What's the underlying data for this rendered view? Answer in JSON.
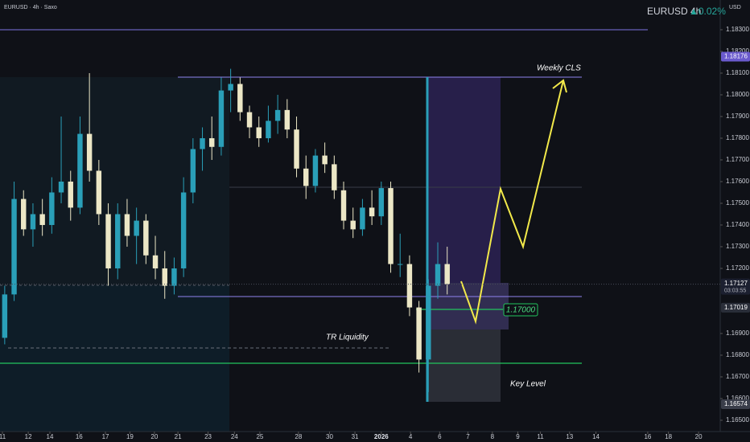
{
  "header": {
    "symbol_title": "EURUSD · 4h · Saxo",
    "ticker": "EURUSD 4h",
    "change": "▲0.02%",
    "currency": "USD"
  },
  "chart_data": {
    "type": "candlestick",
    "up_color": "#2a9fb8",
    "down_color": "#ece7c6",
    "x": [
      0,
      1,
      2,
      3,
      4,
      5,
      6,
      7,
      8,
      9,
      10,
      11,
      12,
      13,
      14,
      15,
      16,
      17,
      18,
      19,
      20,
      21,
      22,
      23,
      24,
      25,
      26,
      27,
      28,
      29,
      30,
      31,
      32,
      33,
      34,
      35,
      36,
      37,
      38,
      39,
      40,
      41,
      42,
      43,
      44,
      45,
      46,
      47
    ],
    "open": [
      1.1688,
      1.1708,
      1.1752,
      1.1738,
      1.1745,
      1.174,
      1.1755,
      1.176,
      1.1748,
      1.1782,
      1.1765,
      1.1745,
      1.172,
      1.1745,
      1.1735,
      1.1742,
      1.1726,
      1.172,
      1.1712,
      1.172,
      1.1755,
      1.1775,
      1.178,
      1.1776,
      1.1802,
      1.1805,
      1.1792,
      1.1785,
      1.178,
      1.1788,
      1.1793,
      1.1784,
      1.1766,
      1.1758,
      1.1772,
      1.1768,
      1.1756,
      1.1742,
      1.1738,
      1.1748,
      1.1744,
      1.1757,
      1.1722,
      1.1722,
      1.1702,
      1.1678,
      1.1712,
      1.1722
    ],
    "high": [
      1.1712,
      1.176,
      1.1756,
      1.175,
      1.1752,
      1.1762,
      1.179,
      1.1765,
      1.179,
      1.181,
      1.177,
      1.175,
      1.175,
      1.1752,
      1.1748,
      1.1745,
      1.1735,
      1.1728,
      1.1725,
      1.1762,
      1.178,
      1.1785,
      1.179,
      1.1808,
      1.1812,
      1.1808,
      1.1795,
      1.179,
      1.1795,
      1.18,
      1.1798,
      1.179,
      1.1772,
      1.1775,
      1.1778,
      1.1772,
      1.176,
      1.1748,
      1.1752,
      1.1756,
      1.176,
      1.176,
      1.1736,
      1.1726,
      1.1705,
      1.1715,
      1.1732,
      1.173
    ],
    "low": [
      1.1685,
      1.1705,
      1.1735,
      1.173,
      1.1735,
      1.1736,
      1.175,
      1.1742,
      1.1745,
      1.176,
      1.174,
      1.1712,
      1.1715,
      1.173,
      1.1722,
      1.1722,
      1.1715,
      1.1706,
      1.1708,
      1.1716,
      1.175,
      1.1765,
      1.177,
      1.1772,
      1.1792,
      1.1788,
      1.178,
      1.1776,
      1.1778,
      1.1782,
      1.178,
      1.1762,
      1.1752,
      1.1755,
      1.1764,
      1.1752,
      1.1738,
      1.1734,
      1.1735,
      1.174,
      1.174,
      1.1718,
      1.1716,
      1.1698,
      1.1672,
      1.1663,
      1.1706,
      1.1708
    ],
    "close": [
      1.1708,
      1.1752,
      1.1738,
      1.1745,
      1.174,
      1.1755,
      1.176,
      1.1748,
      1.1782,
      1.1765,
      1.1745,
      1.172,
      1.1745,
      1.1735,
      1.1742,
      1.1726,
      1.172,
      1.1712,
      1.172,
      1.1755,
      1.1775,
      1.178,
      1.1776,
      1.1802,
      1.1805,
      1.1792,
      1.1785,
      1.178,
      1.1788,
      1.1793,
      1.1784,
      1.1766,
      1.1758,
      1.1772,
      1.1768,
      1.1756,
      1.1742,
      1.1738,
      1.1748,
      1.1744,
      1.1757,
      1.1722,
      1.1722,
      1.1702,
      1.1678,
      1.1712,
      1.1722,
      1.17127
    ],
    "xlim": [
      -0.5,
      76
    ],
    "xticks": [
      {
        "value": -0.24,
        "label": "11"
      },
      {
        "value": 2.5,
        "label": "12"
      },
      {
        "value": 4.8,
        "label": "14"
      },
      {
        "value": 7.9,
        "label": "16"
      },
      {
        "value": 10.7,
        "label": "17"
      },
      {
        "value": 13.3,
        "label": "19"
      },
      {
        "value": 15.9,
        "label": "20"
      },
      {
        "value": 18.4,
        "label": "21"
      },
      {
        "value": 21.6,
        "label": "23"
      },
      {
        "value": 24.4,
        "label": "24"
      },
      {
        "value": 27.1,
        "label": "25"
      },
      {
        "value": 31.2,
        "label": "28"
      },
      {
        "value": 34.5,
        "label": "30"
      },
      {
        "value": 37.2,
        "label": "31"
      },
      {
        "value": 40.0,
        "label": "2026"
      },
      {
        "value": 43.1,
        "label": "4"
      },
      {
        "value": 46.2,
        "label": "6"
      },
      {
        "value": 49.2,
        "label": "7"
      },
      {
        "value": 51.8,
        "label": "8"
      },
      {
        "value": 54.5,
        "label": "9"
      },
      {
        "value": 56.9,
        "label": "11"
      },
      {
        "value": 60.0,
        "label": "13"
      },
      {
        "value": 62.8,
        "label": "14"
      },
      {
        "value": 68.3,
        "label": "16"
      },
      {
        "value": 70.5,
        "label": "18"
      },
      {
        "value": 73.7,
        "label": "20"
      }
    ],
    "ylim": [
      1.16448,
      1.18437
    ],
    "yticks": [
      {
        "value": 1.183,
        "label": "1.18300"
      },
      {
        "value": 1.182,
        "label": "1.18200"
      },
      {
        "value": 1.181,
        "label": "1.18100"
      },
      {
        "value": 1.18,
        "label": "1.18000"
      },
      {
        "value": 1.179,
        "label": "1.17900"
      },
      {
        "value": 1.178,
        "label": "1.17800"
      },
      {
        "value": 1.177,
        "label": "1.17700"
      },
      {
        "value": 1.176,
        "label": "1.17600"
      },
      {
        "value": 1.175,
        "label": "1.17500"
      },
      {
        "value": 1.174,
        "label": "1.17400"
      },
      {
        "value": 1.173,
        "label": "1.17300"
      },
      {
        "value": 1.172,
        "label": "1.17200"
      },
      {
        "value": 1.169,
        "label": "1.16900"
      },
      {
        "value": 1.168,
        "label": "1.16800"
      },
      {
        "value": 1.167,
        "label": "1.16700"
      },
      {
        "value": 1.166,
        "label": "1.16600"
      },
      {
        "value": 1.165,
        "label": "1.16500"
      }
    ],
    "annotations": [
      "Weekly CLS",
      "TR Liquidity",
      "Key Level"
    ],
    "level_label": {
      "value": 1.17,
      "label": "1.17000"
    },
    "price_markers": [
      {
        "value": 1.18176,
        "label": "1.18176",
        "color": "#6a5acd"
      },
      {
        "value": 1.17019,
        "label": "1.17019",
        "color": "#2a2e39"
      },
      {
        "value": 1.16574,
        "label": "1.16574",
        "color": "#3a3e4a"
      }
    ],
    "last_price": {
      "value": 1.17127,
      "label": "1.17127",
      "countdown": "03:03:55",
      "color": "#1c2030"
    }
  }
}
